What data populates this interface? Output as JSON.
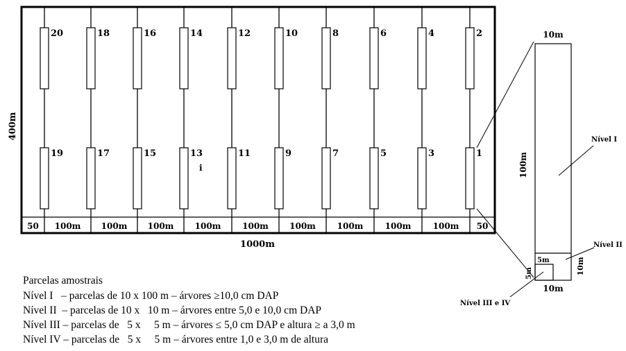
{
  "field": {
    "height_label": "400m",
    "width_label": "1000m",
    "bottom_spacing_labels": [
      "50",
      "100m",
      "100m",
      "100m",
      "100m",
      "100m",
      "100m",
      "100m",
      "100m",
      "100m",
      "50"
    ],
    "top_plot_numbers": [
      "20",
      "18",
      "16",
      "14",
      "12",
      "10",
      "8",
      "6",
      "4",
      "2"
    ],
    "bottom_plot_numbers": [
      "19",
      "17",
      "15",
      "13",
      "11",
      "9",
      "7",
      "5",
      "3",
      "1"
    ],
    "stray_mark": "i"
  },
  "plot_detail": {
    "top_width_label": "10m",
    "length_label": "100m",
    "sub_width_label": "10m",
    "sub_height_label": "10m",
    "small_square_label": "5m",
    "small_side_label": "5m",
    "nivel_i": "Nível I",
    "nivel_ii": "Nível II",
    "nivel_iii_iv": "Nível III e IV"
  },
  "legend": {
    "title": "Parcelas amostrais",
    "lines": [
      "Nível I   – parcelas de 10 x 100 m – árvores ≥10,0 cm DAP",
      "Nível II  – parcelas de 10 x   10 m – árvores entre 5,0 e 10,0 cm DAP",
      "Nível III – parcelas de   5 x     5 m – árvores ≤ 5,0 cm DAP e altura ≥ a 3,0 m",
      "Nível IV – parcelas de   5 x     5 m – árvores entre 1,0 e 3,0 m de altura"
    ]
  }
}
